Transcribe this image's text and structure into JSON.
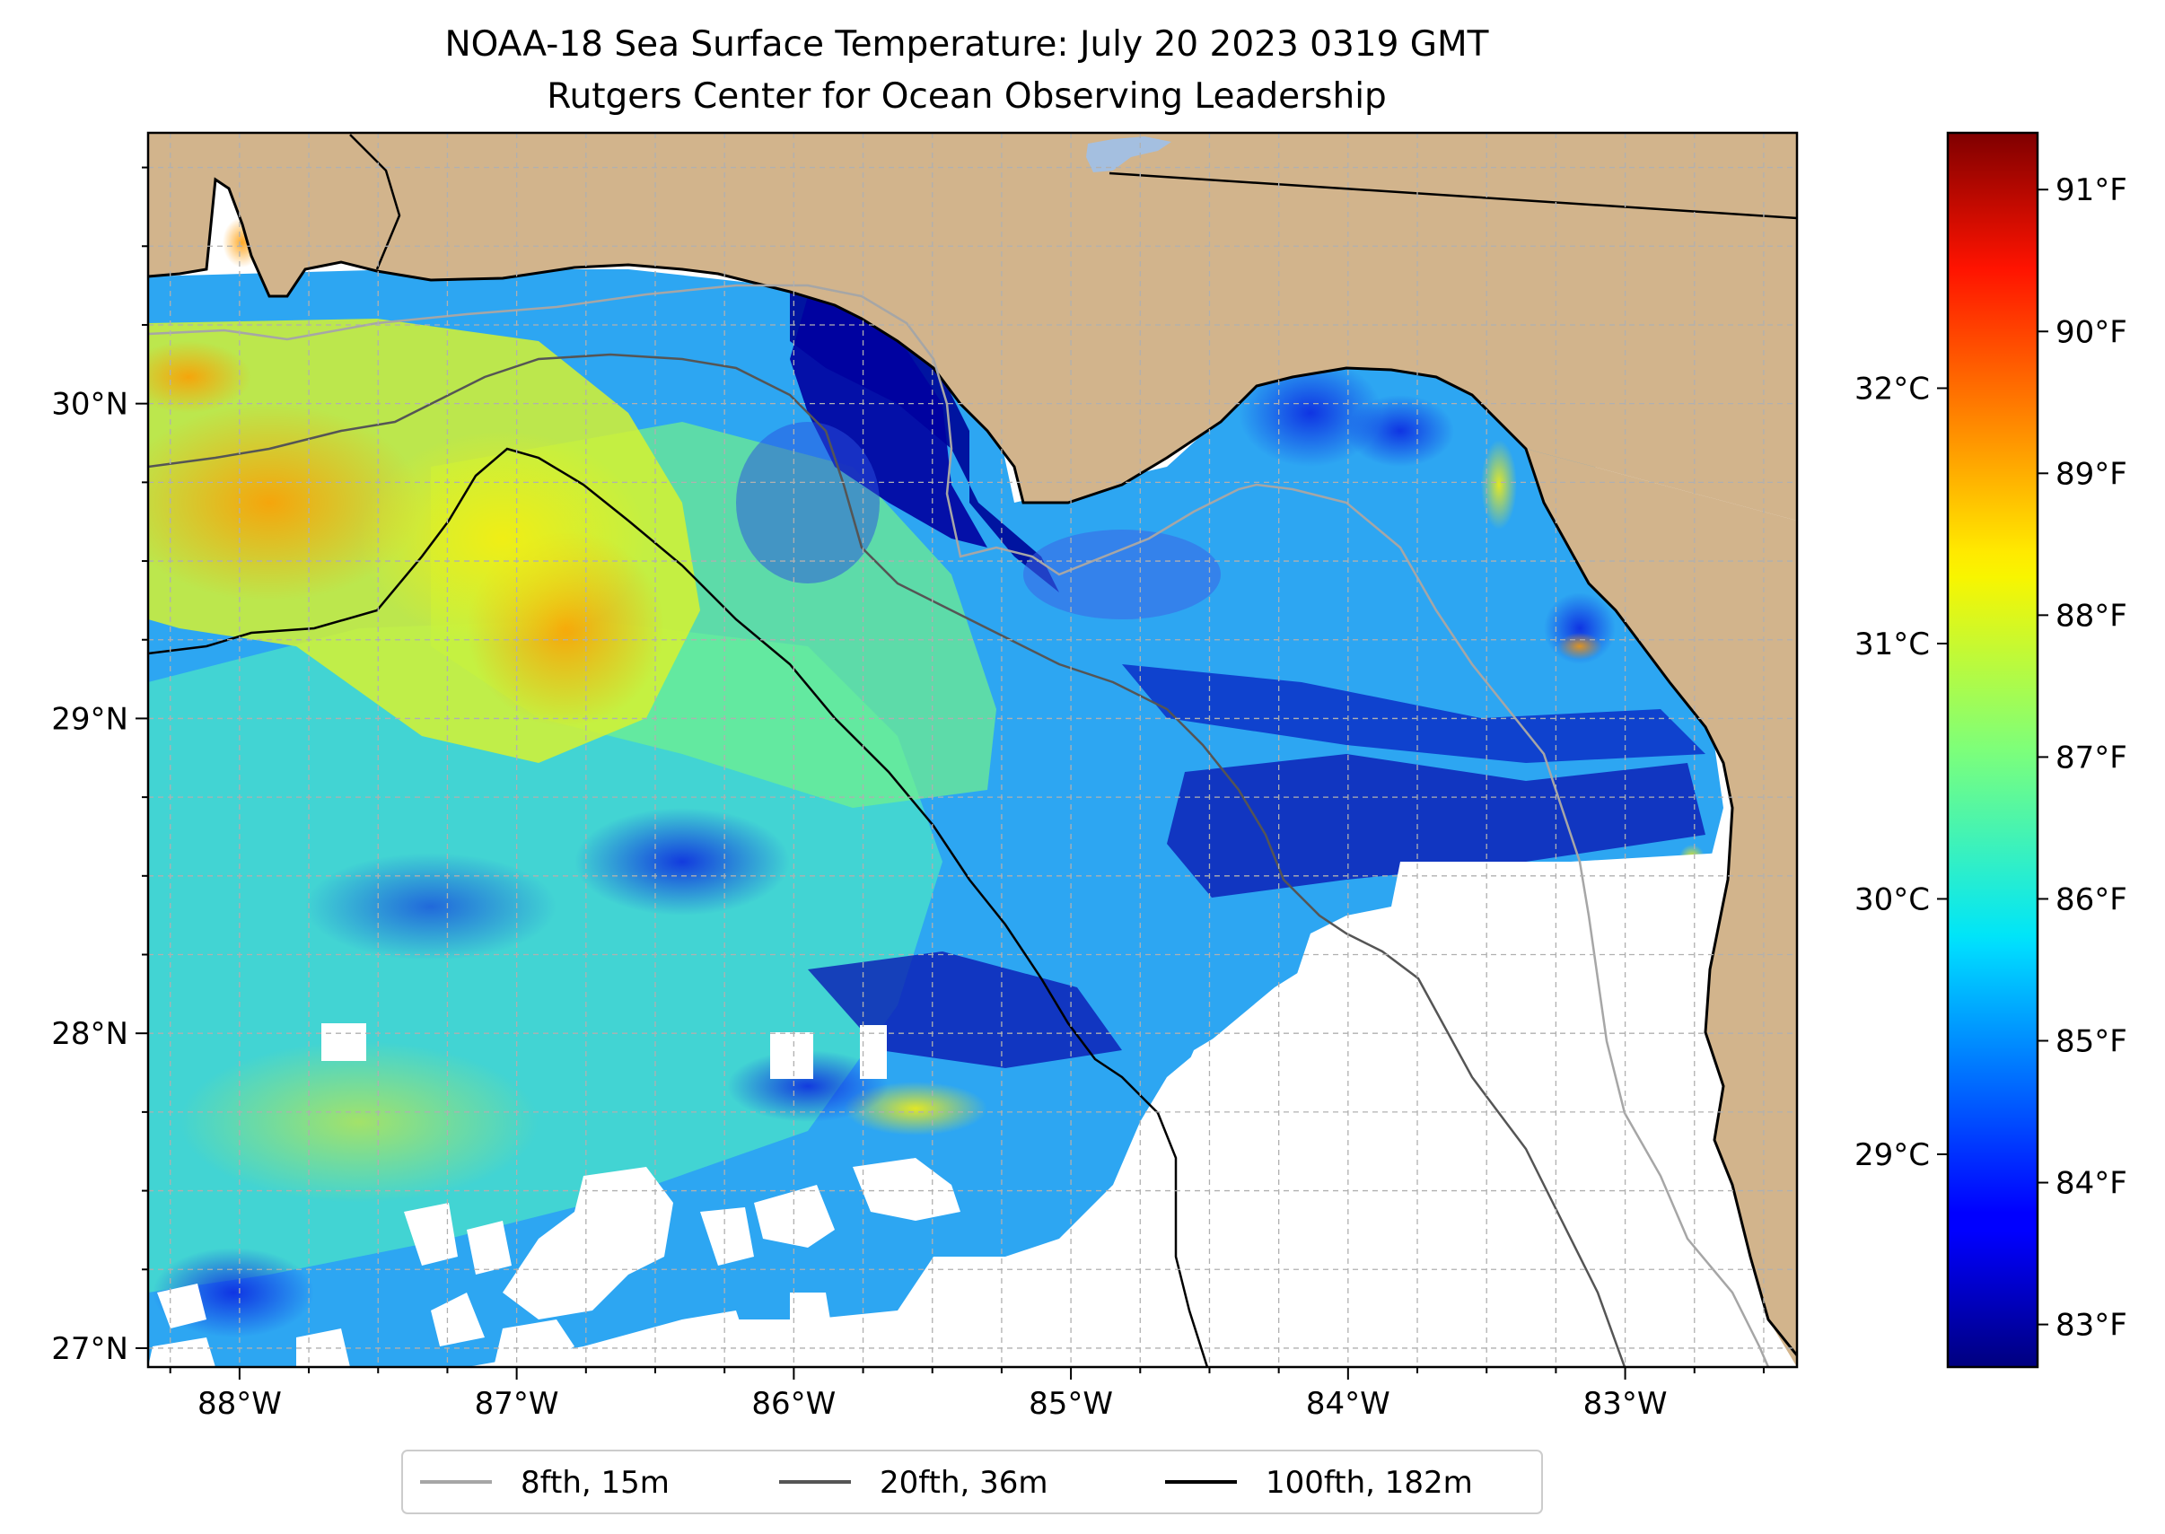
{
  "title": {
    "line1": "NOAA-18 Sea Surface Temperature: July 20 2023 0319 GMT",
    "line2": "Rutgers Center for Ocean Observing Leadership"
  },
  "map": {
    "lon_range": [
      -88.33,
      -82.38
    ],
    "lat_range": [
      26.94,
      30.86
    ],
    "lon_ticks": [
      {
        "value": -88,
        "label": "88°W"
      },
      {
        "value": -87,
        "label": "87°W"
      },
      {
        "value": -86,
        "label": "86°W"
      },
      {
        "value": -85,
        "label": "85°W"
      },
      {
        "value": -84,
        "label": "84°W"
      },
      {
        "value": -83,
        "label": "83°W"
      }
    ],
    "lat_ticks": [
      {
        "value": 27,
        "label": "27°N"
      },
      {
        "value": 28,
        "label": "28°N"
      },
      {
        "value": 29,
        "label": "29°N"
      },
      {
        "value": 30,
        "label": "30°N"
      }
    ],
    "grid": true,
    "grid_step_deg": 0.25,
    "colors": {
      "land": "#d2b48c",
      "lake": "#a4bfe0",
      "no_data": "#ffffff",
      "coastline": "#000000",
      "grid": "#b0b0b0"
    }
  },
  "colorbar": {
    "colormap": "jet",
    "range_f": [
      82.7,
      91.4
    ],
    "fahrenheit_ticks": [
      {
        "value": 83,
        "label": "83°F"
      },
      {
        "value": 84,
        "label": "84°F"
      },
      {
        "value": 85,
        "label": "85°F"
      },
      {
        "value": 86,
        "label": "86°F"
      },
      {
        "value": 87,
        "label": "87°F"
      },
      {
        "value": 88,
        "label": "88°F"
      },
      {
        "value": 89,
        "label": "89°F"
      },
      {
        "value": 90,
        "label": "90°F"
      },
      {
        "value": 91,
        "label": "91°F"
      }
    ],
    "celsius_ticks": [
      {
        "value": 29,
        "label": "29°C"
      },
      {
        "value": 30,
        "label": "30°C"
      },
      {
        "value": 31,
        "label": "31°C"
      },
      {
        "value": 32,
        "label": "32°C"
      }
    ]
  },
  "legend": {
    "placement": "bottom-center",
    "items": [
      {
        "label": "8fth, 15m",
        "color": "#a6a6a6"
      },
      {
        "label": "20fth, 36m",
        "color": "#555555"
      },
      {
        "label": "100fth, 182m",
        "color": "#000000"
      }
    ]
  }
}
